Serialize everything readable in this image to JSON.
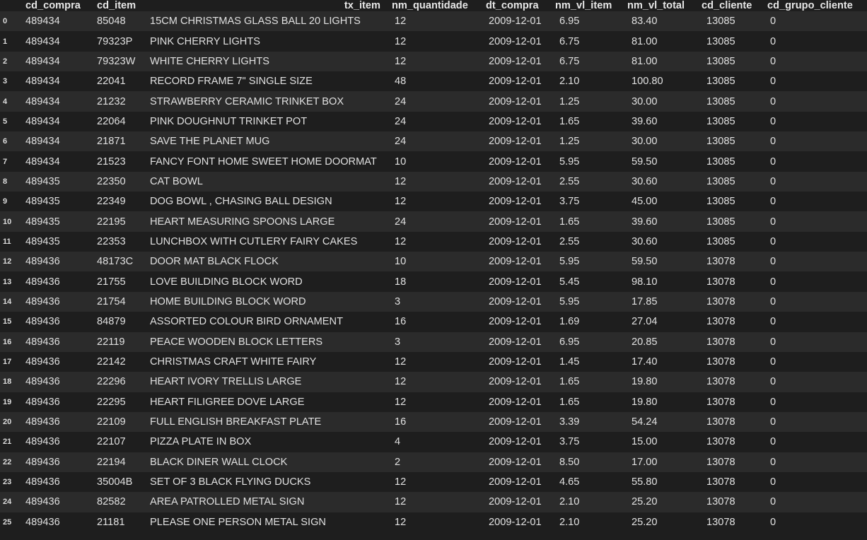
{
  "table": {
    "columns": [
      "",
      "cd_compra",
      "cd_item",
      "tx_item",
      "nm_quantidade",
      "dt_compra",
      "nm_vl_item",
      "nm_vl_total",
      "cd_cliente",
      "cd_grupo_cliente"
    ],
    "rows": [
      [
        "0",
        "489434",
        "85048",
        "15CM CHRISTMAS GLASS BALL 20 LIGHTS",
        "12",
        "2009-12-01",
        "6.95",
        "83.40",
        "13085",
        "0"
      ],
      [
        "1",
        "489434",
        "79323P",
        "PINK CHERRY LIGHTS",
        "12",
        "2009-12-01",
        "6.75",
        "81.00",
        "13085",
        "0"
      ],
      [
        "2",
        "489434",
        "79323W",
        "WHITE CHERRY LIGHTS",
        "12",
        "2009-12-01",
        "6.75",
        "81.00",
        "13085",
        "0"
      ],
      [
        "3",
        "489434",
        "22041",
        "RECORD FRAME 7\" SINGLE SIZE",
        "48",
        "2009-12-01",
        "2.10",
        "100.80",
        "13085",
        "0"
      ],
      [
        "4",
        "489434",
        "21232",
        "STRAWBERRY CERAMIC TRINKET BOX",
        "24",
        "2009-12-01",
        "1.25",
        "30.00",
        "13085",
        "0"
      ],
      [
        "5",
        "489434",
        "22064",
        "PINK DOUGHNUT TRINKET POT",
        "24",
        "2009-12-01",
        "1.65",
        "39.60",
        "13085",
        "0"
      ],
      [
        "6",
        "489434",
        "21871",
        "SAVE THE PLANET MUG",
        "24",
        "2009-12-01",
        "1.25",
        "30.00",
        "13085",
        "0"
      ],
      [
        "7",
        "489434",
        "21523",
        "FANCY FONT HOME SWEET HOME DOORMAT",
        "10",
        "2009-12-01",
        "5.95",
        "59.50",
        "13085",
        "0"
      ],
      [
        "8",
        "489435",
        "22350",
        "CAT BOWL",
        "12",
        "2009-12-01",
        "2.55",
        "30.60",
        "13085",
        "0"
      ],
      [
        "9",
        "489435",
        "22349",
        "DOG BOWL , CHASING BALL DESIGN",
        "12",
        "2009-12-01",
        "3.75",
        "45.00",
        "13085",
        "0"
      ],
      [
        "10",
        "489435",
        "22195",
        "HEART MEASURING SPOONS LARGE",
        "24",
        "2009-12-01",
        "1.65",
        "39.60",
        "13085",
        "0"
      ],
      [
        "11",
        "489435",
        "22353",
        "LUNCHBOX WITH CUTLERY FAIRY CAKES",
        "12",
        "2009-12-01",
        "2.55",
        "30.60",
        "13085",
        "0"
      ],
      [
        "12",
        "489436",
        "48173C",
        "DOOR MAT BLACK FLOCK",
        "10",
        "2009-12-01",
        "5.95",
        "59.50",
        "13078",
        "0"
      ],
      [
        "13",
        "489436",
        "21755",
        "LOVE BUILDING BLOCK WORD",
        "18",
        "2009-12-01",
        "5.45",
        "98.10",
        "13078",
        "0"
      ],
      [
        "14",
        "489436",
        "21754",
        "HOME BUILDING BLOCK WORD",
        "3",
        "2009-12-01",
        "5.95",
        "17.85",
        "13078",
        "0"
      ],
      [
        "15",
        "489436",
        "84879",
        "ASSORTED COLOUR BIRD ORNAMENT",
        "16",
        "2009-12-01",
        "1.69",
        "27.04",
        "13078",
        "0"
      ],
      [
        "16",
        "489436",
        "22119",
        "PEACE WOODEN BLOCK LETTERS",
        "3",
        "2009-12-01",
        "6.95",
        "20.85",
        "13078",
        "0"
      ],
      [
        "17",
        "489436",
        "22142",
        "CHRISTMAS CRAFT WHITE FAIRY",
        "12",
        "2009-12-01",
        "1.45",
        "17.40",
        "13078",
        "0"
      ],
      [
        "18",
        "489436",
        "22296",
        "HEART IVORY TRELLIS LARGE",
        "12",
        "2009-12-01",
        "1.65",
        "19.80",
        "13078",
        "0"
      ],
      [
        "19",
        "489436",
        "22295",
        "HEART FILIGREE DOVE LARGE",
        "12",
        "2009-12-01",
        "1.65",
        "19.80",
        "13078",
        "0"
      ],
      [
        "20",
        "489436",
        "22109",
        "FULL ENGLISH BREAKFAST PLATE",
        "16",
        "2009-12-01",
        "3.39",
        "54.24",
        "13078",
        "0"
      ],
      [
        "21",
        "489436",
        "22107",
        "PIZZA PLATE IN BOX",
        "4",
        "2009-12-01",
        "3.75",
        "15.00",
        "13078",
        "0"
      ],
      [
        "22",
        "489436",
        "22194",
        "BLACK DINER WALL CLOCK",
        "2",
        "2009-12-01",
        "8.50",
        "17.00",
        "13078",
        "0"
      ],
      [
        "23",
        "489436",
        "35004B",
        "SET OF 3 BLACK FLYING DUCKS",
        "12",
        "2009-12-01",
        "4.65",
        "55.80",
        "13078",
        "0"
      ],
      [
        "24",
        "489436",
        "82582",
        "AREA PATROLLED METAL SIGN",
        "12",
        "2009-12-01",
        "2.10",
        "25.20",
        "13078",
        "0"
      ],
      [
        "25",
        "489436",
        "21181",
        "PLEASE ONE PERSON METAL SIGN",
        "12",
        "2009-12-01",
        "2.10",
        "25.20",
        "13078",
        "0"
      ]
    ]
  }
}
